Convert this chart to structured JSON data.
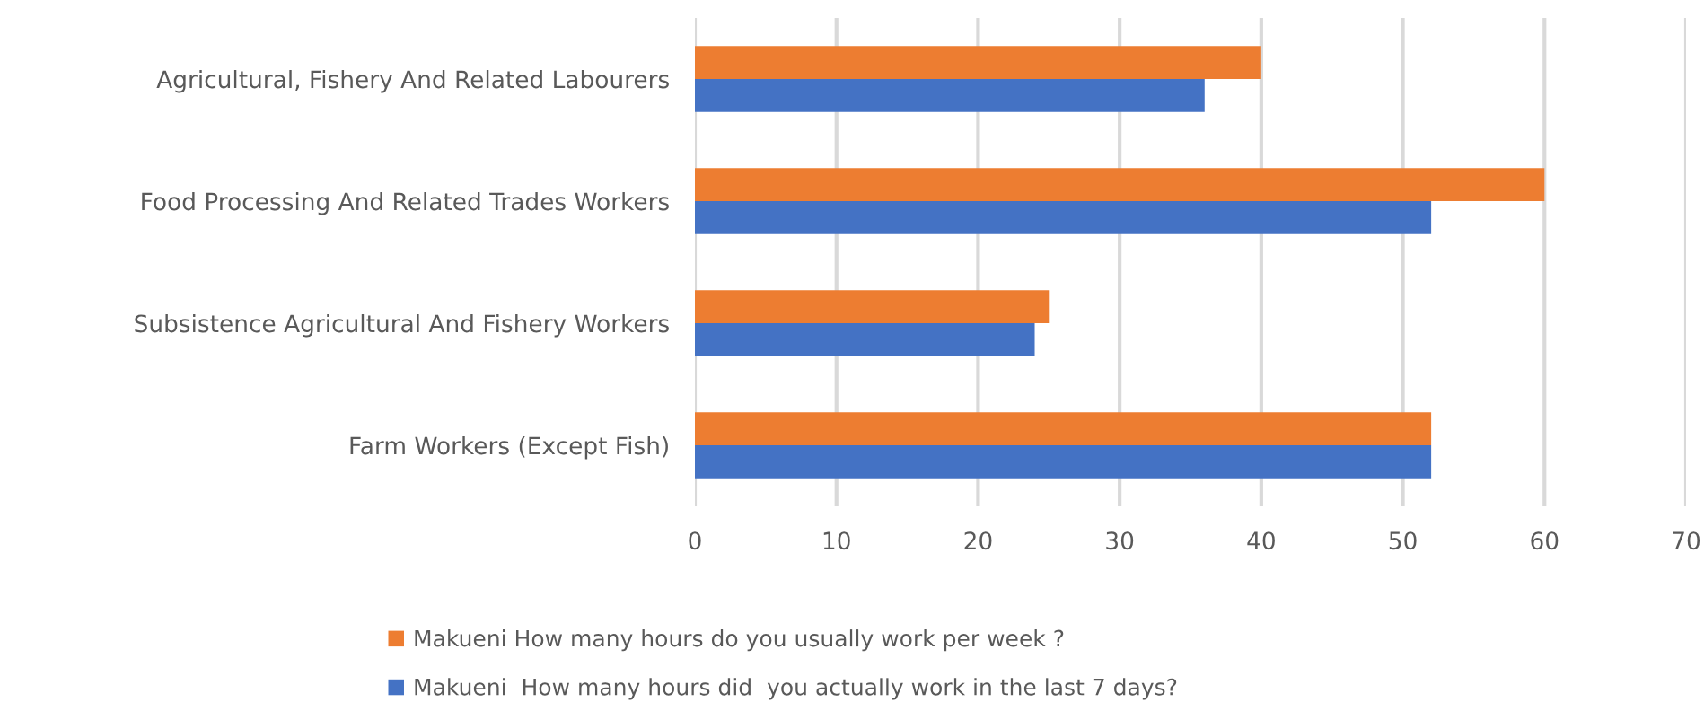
{
  "chart_data": {
    "type": "bar",
    "orientation": "horizontal",
    "categories": [
      "Agricultural, Fishery And Related Labourers",
      "Food Processing And Related Trades Workers",
      "Subsistence Agricultural And Fishery Workers",
      "Farm Workers (Except Fish)"
    ],
    "series": [
      {
        "name": "Makueni How many hours do you usually work per week ?",
        "color": "#ed7d31",
        "values": [
          40,
          60,
          25,
          52
        ]
      },
      {
        "name": "Makueni  How many hours did  you actually work in the last 7 days?",
        "color": "#4472c4",
        "values": [
          36,
          52,
          24,
          52
        ]
      }
    ],
    "xlim": [
      0,
      70
    ],
    "xticks": [
      0,
      10,
      20,
      30,
      40,
      50,
      60,
      70
    ],
    "grid": "x",
    "legend": "bottom"
  }
}
